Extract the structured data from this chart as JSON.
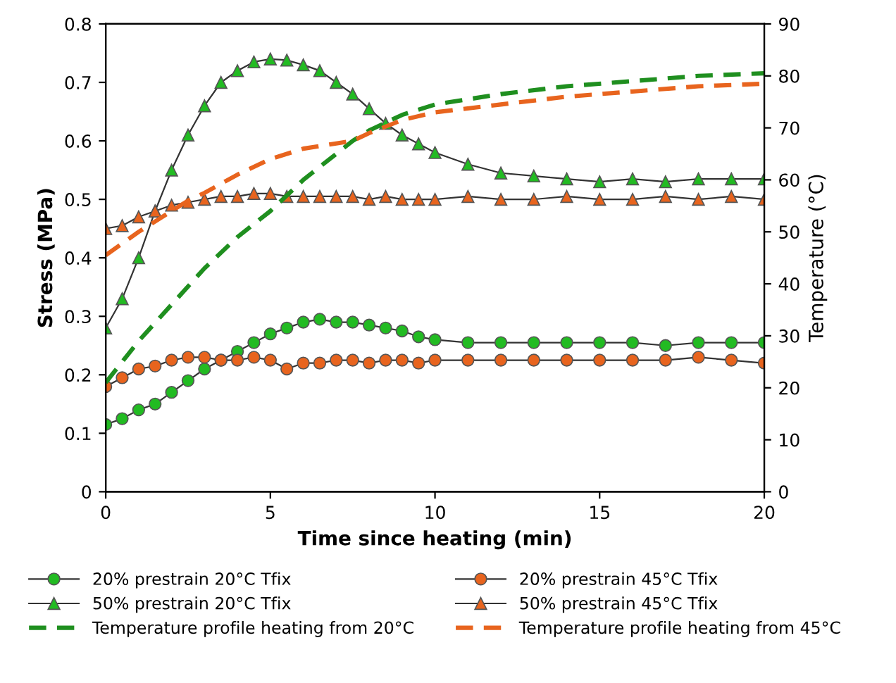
{
  "chart_data": {
    "type": "line",
    "xlabel": "Time since heating (min)",
    "ylabel": "Stress (MPa)",
    "y2label": "Temperature (°C)",
    "xlim": [
      0,
      20
    ],
    "xticks": [
      0,
      5,
      10,
      15,
      20
    ],
    "ylim": [
      0,
      0.8
    ],
    "yticks": [
      0,
      0.1,
      0.2,
      0.3,
      0.4,
      0.5,
      0.6,
      0.7,
      0.8
    ],
    "y2lim": [
      0,
      90
    ],
    "y2ticks": [
      0,
      10,
      20,
      30,
      40,
      50,
      60,
      70,
      80,
      90
    ],
    "grid": false,
    "legend": "bottom",
    "series": [
      {
        "name": "20% prestrain 20°C Tfix",
        "color": "#22bb22",
        "marker": "circle",
        "line_style": "solid",
        "x": [
          0,
          0.5,
          1,
          1.5,
          2,
          2.5,
          3,
          3.5,
          4,
          4.5,
          5,
          5.5,
          6,
          6.5,
          7,
          7.5,
          8,
          8.5,
          9,
          9.5,
          10,
          11,
          12,
          13,
          14,
          15,
          16,
          17,
          18,
          19,
          20
        ],
        "values": [
          0.115,
          0.125,
          0.14,
          0.15,
          0.17,
          0.19,
          0.21,
          0.225,
          0.24,
          0.255,
          0.27,
          0.28,
          0.29,
          0.295,
          0.29,
          0.29,
          0.285,
          0.28,
          0.275,
          0.265,
          0.26,
          0.255,
          0.255,
          0.255,
          0.255,
          0.255,
          0.255,
          0.25,
          0.255,
          0.255,
          0.255
        ]
      },
      {
        "name": "50% prestrain 20°C Tfix",
        "color": "#22bb22",
        "marker": "triangle",
        "line_style": "solid",
        "x": [
          0,
          0.5,
          1,
          1.5,
          2,
          2.5,
          3,
          3.5,
          4,
          4.5,
          5,
          5.5,
          6,
          6.5,
          7,
          7.5,
          8,
          8.5,
          9,
          9.5,
          10,
          11,
          12,
          13,
          14,
          15,
          16,
          17,
          18,
          19,
          20
        ],
        "values": [
          0.28,
          0.33,
          0.4,
          0.48,
          0.55,
          0.61,
          0.66,
          0.7,
          0.72,
          0.735,
          0.74,
          0.738,
          0.73,
          0.72,
          0.7,
          0.68,
          0.655,
          0.63,
          0.61,
          0.595,
          0.58,
          0.56,
          0.545,
          0.54,
          0.535,
          0.53,
          0.535,
          0.53,
          0.535,
          0.535,
          0.535
        ]
      },
      {
        "name": "Temperature profile heating from 20°C",
        "color": "#1f8f1f",
        "marker": "none",
        "line_style": "dashed",
        "axis": "y2",
        "x": [
          0,
          1,
          2,
          3,
          4,
          5,
          6,
          7,
          7.5,
          8,
          9,
          10,
          12,
          14,
          16,
          18,
          20
        ],
        "values": [
          21,
          29,
          36,
          43,
          49,
          54,
          60,
          65,
          67.5,
          69.5,
          72.5,
          74.5,
          76.5,
          78,
          79,
          80,
          80.5
        ]
      },
      {
        "name": "20% prestrain 45°C Tfix",
        "color": "#e8641e",
        "marker": "circle",
        "line_style": "solid",
        "x": [
          0,
          0.5,
          1,
          1.5,
          2,
          2.5,
          3,
          3.5,
          4,
          4.5,
          5,
          5.5,
          6,
          6.5,
          7,
          7.5,
          8,
          8.5,
          9,
          9.5,
          10,
          11,
          12,
          13,
          14,
          15,
          16,
          17,
          18,
          19,
          20
        ],
        "values": [
          0.18,
          0.195,
          0.21,
          0.215,
          0.225,
          0.23,
          0.23,
          0.225,
          0.225,
          0.23,
          0.225,
          0.21,
          0.22,
          0.22,
          0.225,
          0.225,
          0.22,
          0.225,
          0.225,
          0.22,
          0.225,
          0.225,
          0.225,
          0.225,
          0.225,
          0.225,
          0.225,
          0.225,
          0.23,
          0.225,
          0.22
        ]
      },
      {
        "name": "50% prestrain 45°C Tfix",
        "color": "#e8641e",
        "marker": "triangle",
        "line_style": "solid",
        "x": [
          0,
          0.5,
          1,
          1.5,
          2,
          2.5,
          3,
          3.5,
          4,
          4.5,
          5,
          5.5,
          6,
          6.5,
          7,
          7.5,
          8,
          8.5,
          9,
          9.5,
          10,
          11,
          12,
          13,
          14,
          15,
          16,
          17,
          18,
          19,
          20
        ],
        "values": [
          0.45,
          0.455,
          0.47,
          0.48,
          0.49,
          0.495,
          0.5,
          0.505,
          0.505,
          0.51,
          0.51,
          0.505,
          0.505,
          0.505,
          0.505,
          0.505,
          0.5,
          0.505,
          0.5,
          0.5,
          0.5,
          0.505,
          0.5,
          0.5,
          0.505,
          0.5,
          0.5,
          0.505,
          0.5,
          0.505,
          0.5
        ]
      },
      {
        "name": "Temperature profile heating from 45°C",
        "color": "#e8641e",
        "marker": "none",
        "line_style": "dashed",
        "axis": "y2",
        "x": [
          0,
          1,
          2,
          2.5,
          3,
          4,
          5,
          6,
          7,
          7.5,
          8,
          9,
          10,
          12,
          14,
          16,
          18,
          20
        ],
        "values": [
          45.5,
          50,
          54,
          56,
          57.5,
          61,
          64,
          66,
          67,
          67.5,
          69,
          71.5,
          73,
          74.5,
          76,
          77,
          78,
          78.5
        ]
      }
    ]
  }
}
